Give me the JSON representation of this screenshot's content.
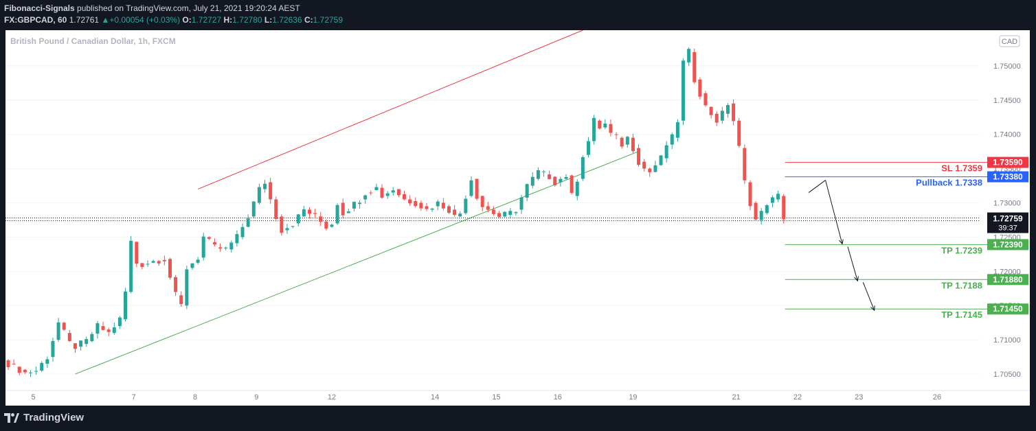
{
  "header": {
    "author": "Fibonacci-Signals",
    "published": "published on TradingView.com, July 21, 2021 19:20:24 AEST",
    "symbol": "FX:GBPCAD, 60",
    "last": "1.72761",
    "change": "+0.00054 (+0.03%)",
    "o_label": "O:",
    "o": "1.72727",
    "h_label": "H:",
    "h": "1.72780",
    "l_label": "L:",
    "l": "1.72636",
    "c_label": "C:",
    "c": "1.72759"
  },
  "footer": {
    "brand": "TradingView"
  },
  "chart_data": {
    "type": "candlestick",
    "title": "British Pound / Canadian Dollar, 1h, FXCM",
    "currency_badge": "CAD",
    "ylim": [
      1.7026,
      1.7552
    ],
    "y_ticks": [
      1.705,
      1.71,
      1.715,
      1.72,
      1.725,
      1.73,
      1.735,
      1.74,
      1.745,
      1.75
    ],
    "y_tick_labels": [
      "1.70500",
      "1.71000",
      "1.71500",
      "1.72000",
      "1.72500",
      "1.73000",
      "1.73500",
      "1.74000",
      "1.74500",
      "1.75000"
    ],
    "x_ticks": [
      "5",
      "7",
      "8",
      "9",
      "12",
      "14",
      "15",
      "16",
      "19",
      "21",
      "22",
      "23",
      "26"
    ],
    "price_anchors": [
      [
        0,
        1.7065
      ],
      [
        3,
        1.7052
      ],
      [
        5,
        1.7055
      ],
      [
        7,
        1.7075
      ],
      [
        9,
        1.7125
      ],
      [
        11,
        1.7095
      ],
      [
        12,
        1.709
      ],
      [
        14,
        1.7098
      ],
      [
        16,
        1.712
      ],
      [
        18,
        1.711
      ],
      [
        20,
        1.713
      ],
      [
        21,
        1.717
      ],
      [
        22,
        1.7243
      ],
      [
        23,
        1.7212
      ],
      [
        24,
        1.721
      ],
      [
        26,
        1.7215
      ],
      [
        28,
        1.7218
      ],
      [
        30,
        1.7165
      ],
      [
        31,
        1.715
      ],
      [
        32,
        1.7205
      ],
      [
        34,
        1.722
      ],
      [
        35,
        1.725
      ],
      [
        37,
        1.7235
      ],
      [
        39,
        1.7232
      ],
      [
        41,
        1.725
      ],
      [
        42,
        1.7265
      ],
      [
        43,
        1.728
      ],
      [
        45,
        1.732
      ],
      [
        46,
        1.733
      ],
      [
        47,
        1.7305
      ],
      [
        48,
        1.728
      ],
      [
        49,
        1.726
      ],
      [
        51,
        1.727
      ],
      [
        53,
        1.729
      ],
      [
        55,
        1.728
      ],
      [
        57,
        1.7265
      ],
      [
        58,
        1.727
      ],
      [
        59,
        1.73
      ],
      [
        60,
        1.7285
      ],
      [
        63,
        1.7305
      ],
      [
        64,
        1.7315
      ],
      [
        66,
        1.7322
      ],
      [
        67,
        1.731
      ],
      [
        69,
        1.732
      ],
      [
        71,
        1.7305
      ],
      [
        73,
        1.73
      ],
      [
        75,
        1.729
      ],
      [
        77,
        1.73
      ],
      [
        79,
        1.729
      ],
      [
        80,
        1.728
      ],
      [
        81,
        1.7285
      ],
      [
        83,
        1.7335
      ],
      [
        84,
        1.731
      ],
      [
        85,
        1.7295
      ],
      [
        87,
        1.7285
      ],
      [
        88,
        1.728
      ],
      [
        90,
        1.7285
      ],
      [
        91,
        1.729
      ],
      [
        93,
        1.7325
      ],
      [
        95,
        1.7345
      ],
      [
        97,
        1.7338
      ],
      [
        98,
        1.733
      ],
      [
        100,
        1.734
      ],
      [
        101,
        1.731
      ],
      [
        102,
        1.7335
      ],
      [
        103,
        1.737
      ],
      [
        104,
        1.739
      ],
      [
        105,
        1.742
      ],
      [
        106,
        1.741
      ],
      [
        107,
        1.7415
      ],
      [
        108,
        1.74
      ],
      [
        109,
        1.7395
      ],
      [
        110,
        1.7385
      ],
      [
        111,
        1.7395
      ],
      [
        112,
        1.738
      ],
      [
        113,
        1.736
      ],
      [
        114,
        1.735
      ],
      [
        115,
        1.7345
      ],
      [
        116,
        1.7355
      ],
      [
        117,
        1.7365
      ],
      [
        118,
        1.7385
      ],
      [
        119,
        1.7395
      ],
      [
        120,
        1.742
      ],
      [
        121,
        1.7505
      ],
      [
        122,
        1.752
      ],
      [
        123,
        1.748
      ],
      [
        124,
        1.746
      ],
      [
        125,
        1.744
      ],
      [
        126,
        1.743
      ],
      [
        127,
        1.742
      ],
      [
        128,
        1.743
      ],
      [
        129,
        1.7445
      ],
      [
        130,
        1.742
      ],
      [
        131,
        1.738
      ],
      [
        132,
        1.733
      ],
      [
        133,
        1.73
      ],
      [
        134,
        1.7275
      ],
      [
        135,
        1.7285
      ],
      [
        136,
        1.73
      ],
      [
        137,
        1.7305
      ],
      [
        138,
        1.731
      ],
      [
        139,
        1.7276
      ]
    ],
    "channel_upper": {
      "from": [
        34,
        1.732
      ],
      "to": [
        103,
        1.7552
      ]
    },
    "channel_lower": {
      "from": [
        12,
        1.705
      ],
      "to": [
        113,
        1.7375
      ]
    },
    "levels": [
      {
        "label": "SL 1.7359",
        "value": 1.7359,
        "badge": "1.73590",
        "color": "#f23645"
      },
      {
        "label": "Pullback 1.7338",
        "value": 1.7338,
        "badge": "1.73380",
        "color": "#2962ff"
      },
      {
        "label": "TP 1.7239",
        "value": 1.7239,
        "badge": "1.72390",
        "color": "#4caf50"
      },
      {
        "label": "TP 1.7188",
        "value": 1.7188,
        "badge": "1.71880",
        "color": "#4caf50"
      },
      {
        "label": "TP 1.7145",
        "value": 1.7145,
        "badge": "1.71450",
        "color": "#4caf50"
      }
    ],
    "current_price": {
      "value": 1.72759,
      "badge": "1.72759",
      "countdown": "39:37"
    },
    "projected_path": [
      [
        143.5,
        1.7315
      ],
      [
        146.5,
        1.7333
      ],
      [
        149.5,
        1.724
      ],
      [
        152.5,
        1.7188
      ],
      [
        155.5,
        1.7145
      ]
    ],
    "colors": {
      "up": "#26a69a",
      "down": "#ef5350",
      "bg": "#ffffff",
      "dark": "#131722"
    }
  }
}
